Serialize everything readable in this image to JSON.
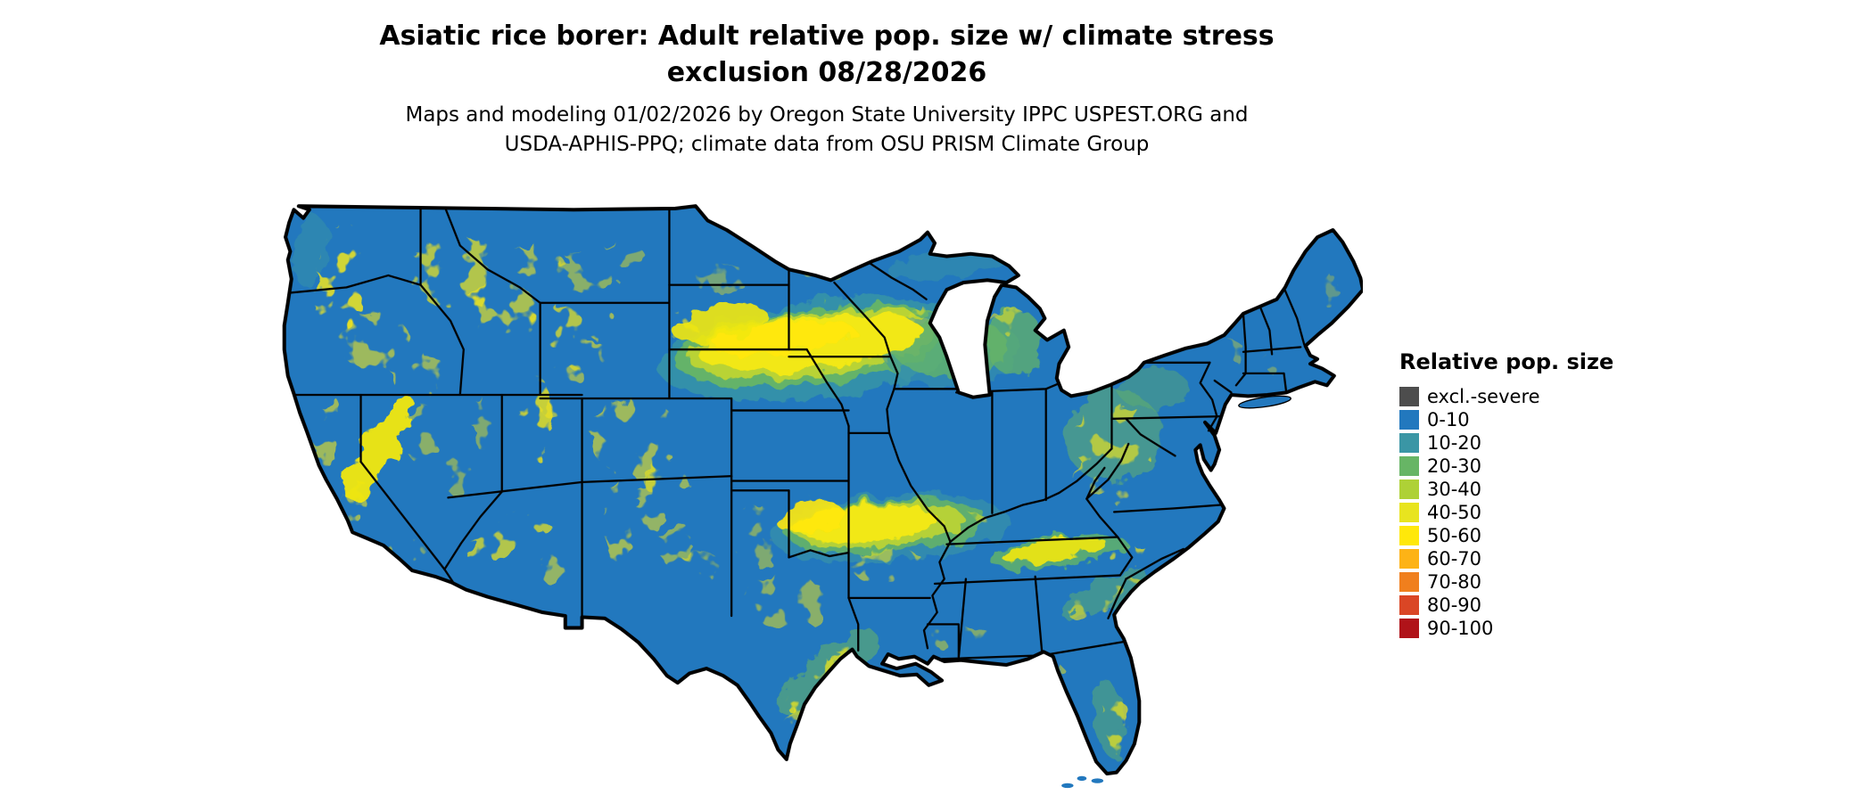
{
  "header": {
    "title_line1": "Asiatic rice borer: Adult relative pop. size w/ climate stress",
    "title_line2": "exclusion 08/28/2026",
    "subtitle_line1": "Maps and modeling 01/02/2026 by Oregon State University IPPC USPEST.ORG and",
    "subtitle_line2": "USDA-APHIS-PPQ; climate data from OSU PRISM Climate Group"
  },
  "legend": {
    "title": "Relative pop. size",
    "items": [
      {
        "label": "excl.-severe",
        "color": "#4d4d4d"
      },
      {
        "label": "0-10",
        "color": "#2278be"
      },
      {
        "label": "10-20",
        "color": "#3a96a5"
      },
      {
        "label": "20-30",
        "color": "#67b565"
      },
      {
        "label": "30-40",
        "color": "#aed136"
      },
      {
        "label": "40-50",
        "color": "#e8e41f"
      },
      {
        "label": "50-60",
        "color": "#ffe80a"
      },
      {
        "label": "60-70",
        "color": "#fdb316"
      },
      {
        "label": "70-80",
        "color": "#f07f1d"
      },
      {
        "label": "80-90",
        "color": "#da4625"
      },
      {
        "label": "90-100",
        "color": "#b01319"
      }
    ]
  },
  "map": {
    "region": "Contiguous United States",
    "base_fill": "#2278be",
    "state_border_color": "#000000"
  }
}
